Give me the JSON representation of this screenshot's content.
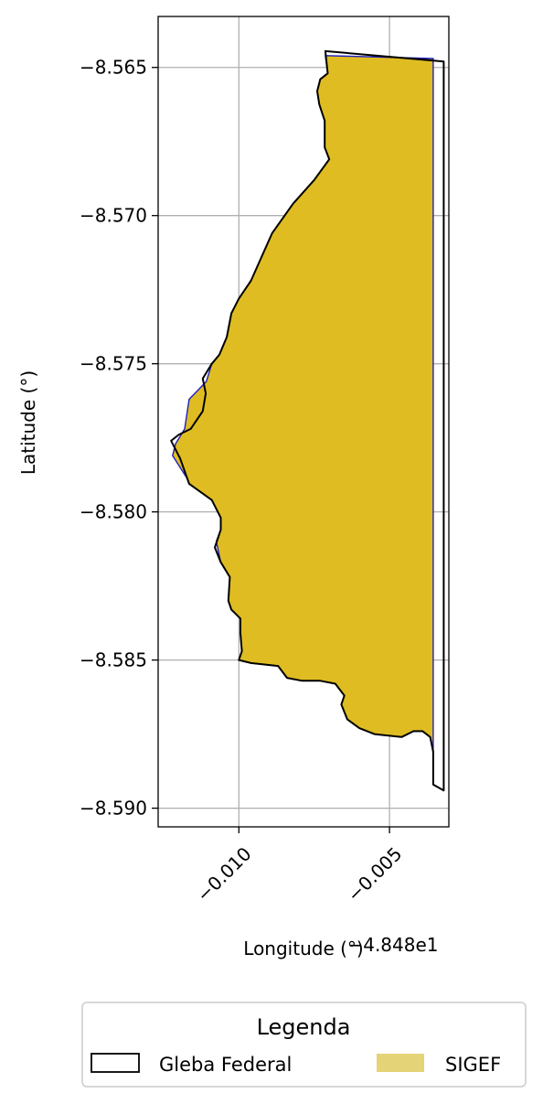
{
  "chart_data": {
    "type": "map",
    "xlabel": "Longitude (°)",
    "ylabel": "Latitude (°)",
    "x_offset_label": "−4.848e1",
    "xlim": [
      -48.49268,
      -48.48303
    ],
    "ylim": [
      -8.59063,
      -8.56328
    ],
    "x_ticks": [
      {
        "value": -48.49,
        "label": "−0.010"
      },
      {
        "value": -48.485,
        "label": "−0.005"
      }
    ],
    "y_ticks": [
      {
        "value": -8.565,
        "label": "−8.565"
      },
      {
        "value": -8.57,
        "label": "−8.570"
      },
      {
        "value": -8.575,
        "label": "−8.575"
      },
      {
        "value": -8.58,
        "label": "−8.580"
      },
      {
        "value": -8.585,
        "label": "−8.585"
      },
      {
        "value": -8.59,
        "label": "−8.590"
      }
    ],
    "grid": true,
    "legend": {
      "title": "Legenda",
      "placement": "below",
      "entries": [
        {
          "label": "Gleba Federal",
          "style": "outline",
          "color": "#000000"
        },
        {
          "label": "SIGEF",
          "style": "fill",
          "color": "#e5d477"
        }
      ]
    },
    "colors": {
      "sigef_fill": "#dfbd22",
      "sigef_edge": "#2020c0",
      "gleba_edge": "#000000",
      "grid": "#b0b0b0"
    },
    "series": [
      {
        "name": "SIGEF",
        "kind": "polygon",
        "points": [
          [
            -48.48713,
            -8.5646
          ],
          [
            -48.48705,
            -8.5652
          ],
          [
            -48.4873,
            -8.5654
          ],
          [
            -48.4874,
            -8.5658
          ],
          [
            -48.48733,
            -8.56625
          ],
          [
            -48.48715,
            -8.5668
          ],
          [
            -48.48715,
            -8.5677
          ],
          [
            -48.487,
            -8.5681
          ],
          [
            -48.4875,
            -8.5688
          ],
          [
            -48.4882,
            -8.5696
          ],
          [
            -48.4889,
            -8.5706
          ],
          [
            -48.4896,
            -8.5722
          ],
          [
            -48.4898,
            -8.5725
          ],
          [
            -48.49,
            -8.5728
          ],
          [
            -48.49025,
            -8.5733
          ],
          [
            -48.4904,
            -8.5741
          ],
          [
            -48.49065,
            -8.5747
          ],
          [
            -48.4909,
            -8.575
          ],
          [
            -48.49108,
            -8.5756
          ],
          [
            -48.49165,
            -8.5762
          ],
          [
            -48.4918,
            -8.5772
          ],
          [
            -48.4921,
            -8.5777
          ],
          [
            -48.4922,
            -8.5781
          ],
          [
            -48.4917,
            -8.5789
          ],
          [
            -48.49165,
            -8.57905
          ],
          [
            -48.4909,
            -8.5796
          ],
          [
            -48.4906,
            -8.5802
          ],
          [
            -48.4906,
            -8.5806
          ],
          [
            -48.49075,
            -8.581
          ],
          [
            -48.4906,
            -8.5817
          ],
          [
            -48.4903,
            -8.5822
          ],
          [
            -48.49035,
            -8.583
          ],
          [
            -48.49025,
            -8.5833
          ],
          [
            -48.48995,
            -8.5836
          ],
          [
            -48.48995,
            -8.5841
          ],
          [
            -48.4899,
            -8.5847
          ],
          [
            -48.49,
            -8.585
          ],
          [
            -48.4896,
            -8.5851
          ],
          [
            -48.4887,
            -8.5852
          ],
          [
            -48.4884,
            -8.5856
          ],
          [
            -48.4879,
            -8.5857
          ],
          [
            -48.4873,
            -8.5857
          ],
          [
            -48.4868,
            -8.5858
          ],
          [
            -48.4865,
            -8.5862
          ],
          [
            -48.4866,
            -8.5865
          ],
          [
            -48.4864,
            -8.587
          ],
          [
            -48.486,
            -8.5873
          ],
          [
            -48.4855,
            -8.5875
          ],
          [
            -48.4846,
            -8.5876
          ],
          [
            -48.4842,
            -8.5874
          ],
          [
            -48.4839,
            -8.5874
          ],
          [
            -48.48365,
            -8.5876
          ],
          [
            -48.48355,
            -8.5881
          ],
          [
            -48.48355,
            -8.5647
          ]
        ]
      },
      {
        "name": "Gleba Federal",
        "kind": "polygon",
        "points": [
          [
            -48.48713,
            -8.56445
          ],
          [
            -48.48705,
            -8.5652
          ],
          [
            -48.4873,
            -8.5654
          ],
          [
            -48.4874,
            -8.5658
          ],
          [
            -48.48733,
            -8.56625
          ],
          [
            -48.48715,
            -8.5668
          ],
          [
            -48.48715,
            -8.5677
          ],
          [
            -48.487,
            -8.5681
          ],
          [
            -48.4875,
            -8.5688
          ],
          [
            -48.4882,
            -8.5696
          ],
          [
            -48.4889,
            -8.5706
          ],
          [
            -48.4896,
            -8.5722
          ],
          [
            -48.4898,
            -8.5725
          ],
          [
            -48.49,
            -8.5728
          ],
          [
            -48.49025,
            -8.5733
          ],
          [
            -48.4904,
            -8.5741
          ],
          [
            -48.49065,
            -8.5747
          ],
          [
            -48.4909,
            -8.575
          ],
          [
            -48.4912,
            -8.5755
          ],
          [
            -48.4911,
            -8.576
          ],
          [
            -48.4912,
            -8.5766
          ],
          [
            -48.4916,
            -8.5772
          ],
          [
            -48.492,
            -8.5774
          ],
          [
            -48.49225,
            -8.5776
          ],
          [
            -48.49195,
            -8.5782
          ],
          [
            -48.49165,
            -8.57905
          ],
          [
            -48.4909,
            -8.5796
          ],
          [
            -48.4906,
            -8.5802
          ],
          [
            -48.4906,
            -8.5806
          ],
          [
            -48.4908,
            -8.5812
          ],
          [
            -48.4906,
            -8.5817
          ],
          [
            -48.4903,
            -8.5822
          ],
          [
            -48.49035,
            -8.583
          ],
          [
            -48.49025,
            -8.5833
          ],
          [
            -48.48995,
            -8.5836
          ],
          [
            -48.48995,
            -8.5841
          ],
          [
            -48.4899,
            -8.5847
          ],
          [
            -48.49,
            -8.585
          ],
          [
            -48.4896,
            -8.5851
          ],
          [
            -48.4887,
            -8.5852
          ],
          [
            -48.4884,
            -8.5856
          ],
          [
            -48.4879,
            -8.5857
          ],
          [
            -48.4873,
            -8.5857
          ],
          [
            -48.4868,
            -8.5858
          ],
          [
            -48.4865,
            -8.5862
          ],
          [
            -48.4866,
            -8.5865
          ],
          [
            -48.4864,
            -8.587
          ],
          [
            -48.486,
            -8.5873
          ],
          [
            -48.4855,
            -8.5875
          ],
          [
            -48.4846,
            -8.5876
          ],
          [
            -48.4842,
            -8.5874
          ],
          [
            -48.4839,
            -8.5874
          ],
          [
            -48.48365,
            -8.5876
          ],
          [
            -48.48355,
            -8.5881
          ],
          [
            -48.48355,
            -8.5892
          ],
          [
            -48.4832,
            -8.5894
          ],
          [
            -48.4832,
            -8.5648
          ],
          [
            -48.48713,
            -8.56445
          ]
        ]
      }
    ]
  }
}
